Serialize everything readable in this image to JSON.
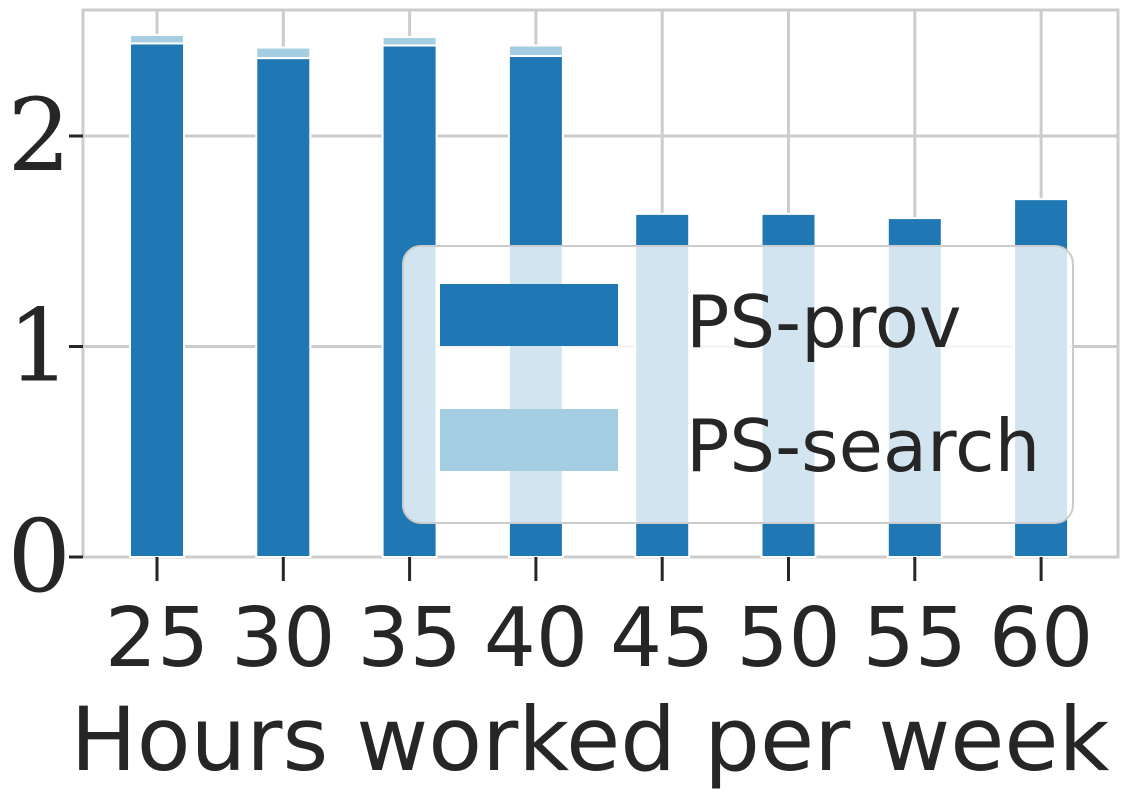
{
  "chart_data": {
    "type": "bar",
    "stacked": true,
    "title": "",
    "xlabel": "Hours worked per week",
    "ylabel": "",
    "categories": [
      "25",
      "30",
      "35",
      "40",
      "45",
      "50",
      "55",
      "60"
    ],
    "series": [
      {
        "name": "PS-prov",
        "color": "#1f77b4",
        "values": [
          2.44,
          2.37,
          2.43,
          2.38,
          1.63,
          1.63,
          1.61,
          1.7
        ]
      },
      {
        "name": "PS-search",
        "color": "#a6cee3",
        "values": [
          0.04,
          0.05,
          0.04,
          0.05,
          0.0,
          0.0,
          0.0,
          0.0
        ]
      }
    ],
    "yticks": [
      "0",
      "1",
      "2"
    ],
    "ylim": [
      0,
      2.6
    ],
    "grid": true,
    "legend_position": "lower-right"
  }
}
